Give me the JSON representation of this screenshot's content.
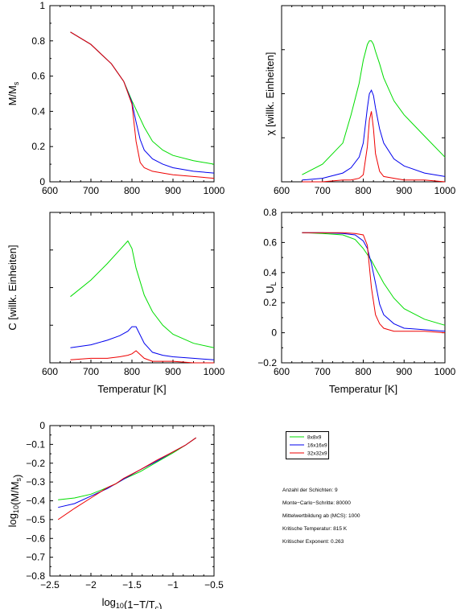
{
  "colors": {
    "8x8x9": "#00dd00",
    "16x16x9": "#0000ee",
    "32x32x9": "#ee0000",
    "axes": "#000000"
  },
  "legend": {
    "items": [
      "8x8x9",
      "16x16x9",
      "32x32x9"
    ]
  },
  "info": {
    "layers": "Anzahl der Schichten: 9",
    "mcs": "Monte−Carlo−Schritte: 80000",
    "avg": "Mittelwertbildung ab (MCS): 1000",
    "tc": "Kritische Temperatur: 815 K",
    "exponent": "Kritischer Exponent: 0.263"
  },
  "chart_data": [
    {
      "id": "magnetization",
      "type": "line",
      "ylabel": "M/M_s",
      "xlabel": "",
      "xlim": [
        600,
        1000
      ],
      "ylim": [
        0,
        1
      ],
      "xticks": [
        "600",
        "700",
        "800",
        "900",
        "1000"
      ],
      "yticks": [
        "0",
        "0.2",
        "0.4",
        "0.6",
        "0.8",
        "1"
      ],
      "x": [
        650,
        700,
        750,
        780,
        800,
        810,
        820,
        830,
        850,
        875,
        900,
        950,
        1000
      ],
      "series": [
        {
          "name": "8x8x9",
          "values": [
            0.85,
            0.78,
            0.67,
            0.57,
            0.46,
            0.41,
            0.36,
            0.31,
            0.23,
            0.18,
            0.15,
            0.12,
            0.1
          ]
        },
        {
          "name": "16x16x9",
          "values": [
            0.85,
            0.78,
            0.67,
            0.57,
            0.45,
            0.34,
            0.24,
            0.18,
            0.13,
            0.1,
            0.08,
            0.06,
            0.05
          ]
        },
        {
          "name": "32x32x9",
          "values": [
            0.85,
            0.78,
            0.67,
            0.57,
            0.44,
            0.23,
            0.11,
            0.08,
            0.06,
            0.05,
            0.04,
            0.03,
            0.02
          ]
        }
      ]
    },
    {
      "id": "susceptibility",
      "type": "line",
      "ylabel": "χ [willk. Einheiten]",
      "xlabel": "",
      "xlim": [
        600,
        1000
      ],
      "ylim": [
        0,
        1
      ],
      "xticks": [
        "600",
        "700",
        "800",
        "900",
        "1000"
      ],
      "yticks": [],
      "x": [
        650,
        700,
        750,
        770,
        790,
        800,
        810,
        815,
        820,
        825,
        830,
        840,
        850,
        875,
        900,
        950,
        1000
      ],
      "series": [
        {
          "name": "8x8x9",
          "values": [
            0.04,
            0.1,
            0.22,
            0.38,
            0.56,
            0.69,
            0.78,
            0.8,
            0.8,
            0.78,
            0.74,
            0.67,
            0.59,
            0.46,
            0.38,
            0.26,
            0.14
          ]
        },
        {
          "name": "16x16x9",
          "values": [
            0.01,
            0.02,
            0.05,
            0.08,
            0.14,
            0.22,
            0.42,
            0.5,
            0.52,
            0.49,
            0.42,
            0.3,
            0.22,
            0.13,
            0.09,
            0.05,
            0.03
          ]
        },
        {
          "name": "32x32x9",
          "values": [
            0.0,
            0.0,
            0.01,
            0.01,
            0.02,
            0.04,
            0.2,
            0.35,
            0.4,
            0.3,
            0.16,
            0.06,
            0.03,
            0.02,
            0.01,
            0.01,
            0.0
          ]
        }
      ]
    },
    {
      "id": "heat_capacity",
      "type": "line",
      "ylabel": "C [willk. Einheiten]",
      "xlabel": "Temperatur [K]",
      "xlim": [
        600,
        1000
      ],
      "ylim": [
        0,
        1
      ],
      "xticks": [
        "600",
        "700",
        "800",
        "900",
        "1000"
      ],
      "yticks": [],
      "x": [
        650,
        700,
        740,
        770,
        790,
        800,
        810,
        830,
        850,
        875,
        900,
        950,
        1000
      ],
      "series": [
        {
          "name": "8x8x9",
          "values": [
            0.44,
            0.55,
            0.66,
            0.75,
            0.81,
            0.76,
            0.63,
            0.45,
            0.34,
            0.25,
            0.19,
            0.13,
            0.1
          ]
        },
        {
          "name": "16x16x9",
          "values": [
            0.1,
            0.12,
            0.15,
            0.18,
            0.21,
            0.24,
            0.24,
            0.13,
            0.07,
            0.05,
            0.04,
            0.03,
            0.02
          ]
        },
        {
          "name": "32x32x9",
          "values": [
            0.02,
            0.03,
            0.03,
            0.04,
            0.05,
            0.06,
            0.08,
            0.03,
            0.01,
            0.01,
            0.01,
            0.0,
            0.0
          ]
        }
      ]
    },
    {
      "id": "binder_cumulant",
      "type": "line",
      "ylabel": "U_L",
      "xlabel": "Temperatur [K]",
      "xlim": [
        600,
        1000
      ],
      "ylim": [
        -0.2,
        0.8
      ],
      "xticks": [
        "600",
        "700",
        "800",
        "900",
        "1000"
      ],
      "yticks": [
        "−0.2",
        "0",
        "0.2",
        "0.4",
        "0.6",
        "0.8"
      ],
      "x": [
        650,
        700,
        750,
        780,
        800,
        810,
        820,
        830,
        840,
        850,
        875,
        900,
        950,
        1000
      ],
      "series": [
        {
          "name": "8x8x9",
          "values": [
            0.665,
            0.66,
            0.65,
            0.62,
            0.56,
            0.52,
            0.48,
            0.43,
            0.38,
            0.33,
            0.23,
            0.16,
            0.09,
            0.05
          ]
        },
        {
          "name": "16x16x9",
          "values": [
            0.665,
            0.665,
            0.66,
            0.65,
            0.61,
            0.56,
            0.46,
            0.33,
            0.19,
            0.12,
            0.06,
            0.03,
            0.02,
            0.01
          ]
        },
        {
          "name": "32x32x9",
          "values": [
            0.665,
            0.665,
            0.665,
            0.66,
            0.65,
            0.58,
            0.3,
            0.12,
            0.06,
            0.03,
            0.01,
            0.01,
            0.01,
            0.0
          ]
        }
      ]
    },
    {
      "id": "loglog",
      "type": "line",
      "ylabel": "log10(M/Ms)",
      "xlabel": "log10(1−T/Tc)",
      "xlim": [
        -2.5,
        -0.5
      ],
      "ylim": [
        -0.8,
        0
      ],
      "xticks": [
        "−2.5",
        "−2",
        "−1.5",
        "−1",
        "−0.5"
      ],
      "yticks": [
        "−0.8",
        "−0.7",
        "−0.6",
        "−0.5",
        "−0.4",
        "−0.3",
        "−0.2",
        "−0.1",
        "0"
      ],
      "x": [
        -2.4,
        -2.2,
        -2.0,
        -1.8,
        -1.7,
        -1.6,
        -1.4,
        -1.2,
        -1.0,
        -0.85,
        -0.72
      ],
      "series": [
        {
          "name": "8x8x9",
          "values": [
            -0.395,
            -0.385,
            -0.365,
            -0.33,
            -0.31,
            -0.285,
            -0.245,
            -0.195,
            -0.145,
            -0.105,
            -0.065
          ]
        },
        {
          "name": "16x16x9",
          "values": [
            -0.435,
            -0.415,
            -0.375,
            -0.335,
            -0.31,
            -0.285,
            -0.235,
            -0.19,
            -0.14,
            -0.105,
            -0.065
          ]
        },
        {
          "name": "32x32x9",
          "values": [
            -0.5,
            -0.44,
            -0.385,
            -0.33,
            -0.31,
            -0.28,
            -0.235,
            -0.185,
            -0.14,
            -0.105,
            -0.065
          ]
        }
      ]
    }
  ]
}
